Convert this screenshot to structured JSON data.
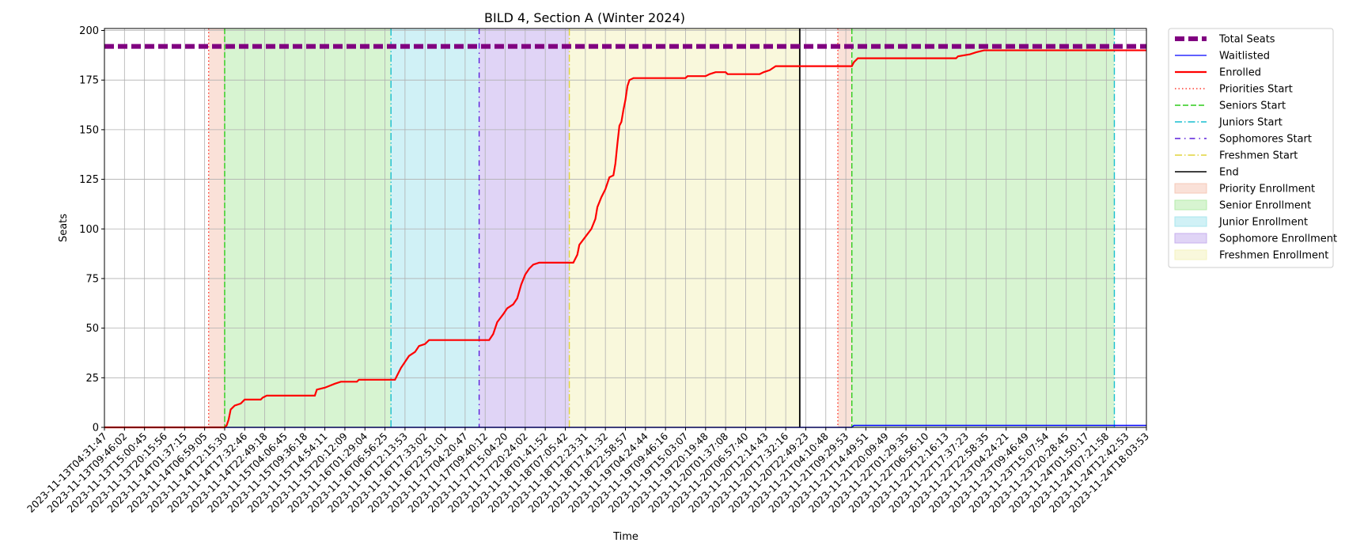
{
  "chart_data": {
    "type": "line",
    "title": "BILD 4, Section A (Winter 2024)",
    "xlabel": "Time",
    "ylabel": "Seats",
    "ylim": [
      0,
      201
    ],
    "yticks": [
      0,
      25,
      50,
      75,
      100,
      125,
      150,
      175,
      200
    ],
    "grid": true,
    "legend_position": "outside-right",
    "xticks": [
      "2023-11-13T04:31:47",
      "2023-11-13T09:46:02",
      "2023-11-13T15:00:45",
      "2023-11-13T20:15:56",
      "2023-11-14T01:37:15",
      "2023-11-14T06:59:05",
      "2023-11-14T12:15:30",
      "2023-11-14T17:32:46",
      "2023-11-14T22:49:18",
      "2023-11-15T04:06:45",
      "2023-11-15T09:36:18",
      "2023-11-15T14:54:11",
      "2023-11-15T20:12:09",
      "2023-11-16T01:29:04",
      "2023-11-16T06:56:25",
      "2023-11-16T12:13:53",
      "2023-11-16T17:33:02",
      "2023-11-16T22:51:01",
      "2023-11-17T04:20:47",
      "2023-11-17T09:40:12",
      "2023-11-17T15:04:20",
      "2023-11-17T20:24:02",
      "2023-11-18T01:41:52",
      "2023-11-18T07:05:42",
      "2023-11-18T12:23:31",
      "2023-11-18T17:41:32",
      "2023-11-18T22:58:57",
      "2023-11-19T04:24:44",
      "2023-11-19T09:46:16",
      "2023-11-19T15:03:07",
      "2023-11-19T20:19:48",
      "2023-11-20T01:37:08",
      "2023-11-20T06:57:40",
      "2023-11-20T12:14:43",
      "2023-11-20T17:32:16",
      "2023-11-20T22:49:23",
      "2023-11-21T04:10:48",
      "2023-11-21T09:29:53",
      "2023-11-21T14:49:51",
      "2023-11-21T20:09:49",
      "2023-11-22T01:29:35",
      "2023-11-22T06:56:10",
      "2023-11-22T12:16:13",
      "2023-11-22T17:37:23",
      "2023-11-22T22:58:35",
      "2023-11-23T04:24:21",
      "2023-11-23T09:46:49",
      "2023-11-23T15:07:54",
      "2023-11-23T20:28:45",
      "2023-11-24T01:50:17",
      "2023-11-24T07:21:58",
      "2023-11-24T12:42:53",
      "2023-11-24T18:03:53"
    ],
    "series": [
      {
        "name": "Total Seats",
        "style": "dashed-thick",
        "color": "#800080",
        "points": [
          [
            0,
            192
          ],
          [
            52,
            192
          ]
        ]
      },
      {
        "name": "Waitlisted",
        "style": "solid",
        "color": "#0000ff",
        "points": [
          [
            0,
            0
          ],
          [
            37.3,
            0
          ],
          [
            37.4,
            1
          ],
          [
            52,
            1
          ]
        ]
      },
      {
        "name": "Enrolled",
        "style": "solid",
        "color": "#ff0000",
        "points": [
          [
            0,
            0
          ],
          [
            6,
            0
          ],
          [
            6.1,
            1
          ],
          [
            6.2,
            4
          ],
          [
            6.3,
            9
          ],
          [
            6.5,
            11
          ],
          [
            6.8,
            12
          ],
          [
            7.0,
            14
          ],
          [
            7.8,
            14
          ],
          [
            7.9,
            15
          ],
          [
            8.1,
            16
          ],
          [
            10.5,
            16
          ],
          [
            10.6,
            19
          ],
          [
            11.0,
            20
          ],
          [
            11.5,
            22
          ],
          [
            11.8,
            23
          ],
          [
            12.6,
            23
          ],
          [
            12.7,
            24
          ],
          [
            14.5,
            24
          ],
          [
            14.6,
            26
          ],
          [
            14.8,
            30
          ],
          [
            15.0,
            33
          ],
          [
            15.2,
            36
          ],
          [
            15.5,
            38
          ],
          [
            15.7,
            41
          ],
          [
            16.0,
            42
          ],
          [
            16.2,
            44
          ],
          [
            16.5,
            44
          ],
          [
            17.0,
            44
          ],
          [
            18.5,
            44
          ],
          [
            19.2,
            44
          ],
          [
            19.4,
            47
          ],
          [
            19.6,
            53
          ],
          [
            19.9,
            57
          ],
          [
            20.1,
            60
          ],
          [
            20.4,
            62
          ],
          [
            20.6,
            65
          ],
          [
            20.8,
            72
          ],
          [
            21.0,
            77
          ],
          [
            21.2,
            80
          ],
          [
            21.4,
            82
          ],
          [
            21.7,
            83
          ],
          [
            23.4,
            83
          ],
          [
            23.6,
            87
          ],
          [
            23.7,
            92
          ],
          [
            24.0,
            96
          ],
          [
            24.3,
            100
          ],
          [
            24.5,
            105
          ],
          [
            24.6,
            111
          ],
          [
            24.8,
            116
          ],
          [
            25.0,
            120
          ],
          [
            25.2,
            126
          ],
          [
            25.4,
            127
          ],
          [
            25.5,
            133
          ],
          [
            25.6,
            143
          ],
          [
            25.7,
            152
          ],
          [
            25.8,
            154
          ],
          [
            25.9,
            160
          ],
          [
            26.0,
            165
          ],
          [
            26.1,
            172
          ],
          [
            26.2,
            175
          ],
          [
            26.4,
            176
          ],
          [
            29.0,
            176
          ],
          [
            29.1,
            177
          ],
          [
            30.0,
            177
          ],
          [
            30.2,
            178
          ],
          [
            30.5,
            179
          ],
          [
            31.0,
            179
          ],
          [
            31.1,
            178
          ],
          [
            32.7,
            178
          ],
          [
            32.9,
            179
          ],
          [
            33.2,
            180
          ],
          [
            33.5,
            182
          ],
          [
            37.3,
            182
          ],
          [
            37.4,
            184
          ],
          [
            37.6,
            186
          ],
          [
            42.5,
            186
          ],
          [
            42.6,
            187
          ],
          [
            43.2,
            188
          ],
          [
            43.5,
            189
          ],
          [
            43.9,
            190
          ],
          [
            52,
            190
          ]
        ]
      }
    ],
    "vertical_markers": [
      {
        "name": "Priorities Start",
        "style": "dotted",
        "color": "#ff3b30",
        "x": [
          5.2,
          36.6
        ]
      },
      {
        "name": "Seniors Start",
        "style": "dashed",
        "color": "#2ecc1b",
        "x": [
          6.0,
          37.3
        ]
      },
      {
        "name": "Juniors Start",
        "style": "dashdot",
        "color": "#17becf",
        "x": [
          14.3,
          50.4
        ]
      },
      {
        "name": "Sophomores Start",
        "style": "dashdot-sparse",
        "color": "#5b1fdb",
        "x": [
          18.7
        ]
      },
      {
        "name": "Freshmen Start",
        "style": "dashdot",
        "color": "#e0d43a",
        "x": [
          23.2
        ]
      },
      {
        "name": "End",
        "style": "solid",
        "color": "#000000",
        "x": [
          34.7
        ]
      }
    ],
    "spans": [
      {
        "name": "Priority Enrollment",
        "color": "#f6c9b8",
        "ranges": [
          [
            5.2,
            6.0
          ],
          [
            36.6,
            37.3
          ]
        ]
      },
      {
        "name": "Senior Enrollment",
        "color": "#b6ebab",
        "ranges": [
          [
            6.0,
            14.3
          ],
          [
            37.3,
            50.4
          ]
        ]
      },
      {
        "name": "Junior Enrollment",
        "color": "#a9e6ee",
        "ranges": [
          [
            14.3,
            18.7
          ]
        ]
      },
      {
        "name": "Sophomore Enrollment",
        "color": "#c7b0ee",
        "ranges": [
          [
            18.7,
            23.2
          ]
        ]
      },
      {
        "name": "Freshmen Enrollment",
        "color": "#f4f3bf",
        "ranges": [
          [
            23.2,
            34.7
          ]
        ]
      }
    ],
    "legend": [
      {
        "label": "Total Seats",
        "kind": "line",
        "color": "#800080",
        "style": "dashed-thick"
      },
      {
        "label": "Waitlisted",
        "kind": "line",
        "color": "#0000ff",
        "style": "solid-thin"
      },
      {
        "label": "Enrolled",
        "kind": "line",
        "color": "#ff0000",
        "style": "solid"
      },
      {
        "label": "Priorities Start",
        "kind": "line",
        "color": "#ff3b30",
        "style": "dotted"
      },
      {
        "label": "Seniors Start",
        "kind": "line",
        "color": "#2ecc1b",
        "style": "dashed"
      },
      {
        "label": "Juniors Start",
        "kind": "line",
        "color": "#17becf",
        "style": "dashdot"
      },
      {
        "label": "Sophomores Start",
        "kind": "line",
        "color": "#5b1fdb",
        "style": "dashdot-sparse"
      },
      {
        "label": "Freshmen Start",
        "kind": "line",
        "color": "#e0d43a",
        "style": "dashdot"
      },
      {
        "label": "End",
        "kind": "line",
        "color": "#000000",
        "style": "solid"
      },
      {
        "label": "Priority Enrollment",
        "kind": "patch",
        "color": "#f6c9b8"
      },
      {
        "label": "Senior Enrollment",
        "kind": "patch",
        "color": "#b6ebab"
      },
      {
        "label": "Junior Enrollment",
        "kind": "patch",
        "color": "#a9e6ee"
      },
      {
        "label": "Sophomore Enrollment",
        "kind": "patch",
        "color": "#c7b0ee"
      },
      {
        "label": "Freshmen Enrollment",
        "kind": "patch",
        "color": "#f4f3bf"
      }
    ]
  }
}
